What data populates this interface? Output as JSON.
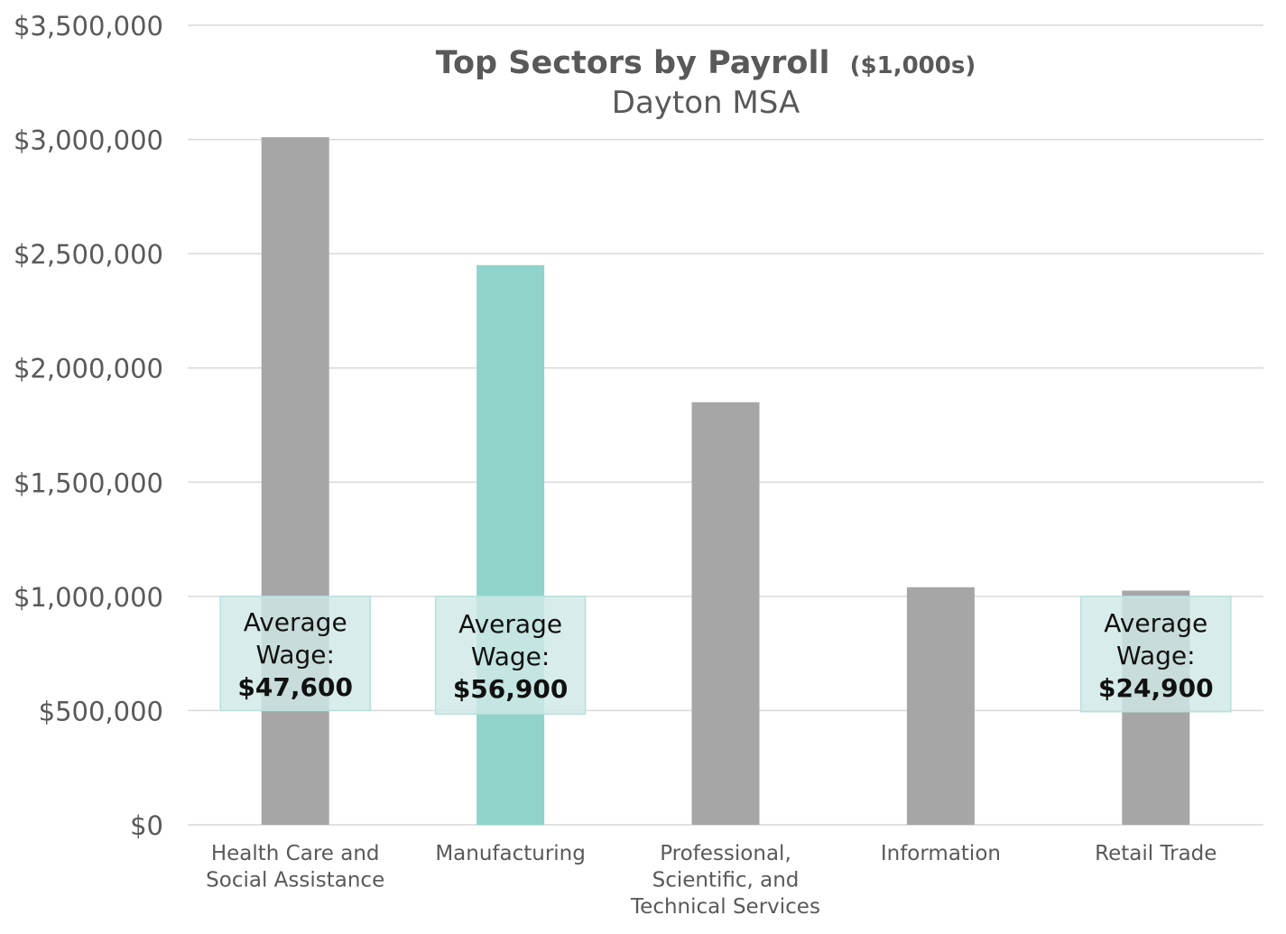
{
  "chart_data": {
    "type": "bar",
    "title": "Top Sectors by Payroll",
    "title_unit": "($1,000s)",
    "subtitle": "Dayton MSA",
    "xlabel": "",
    "ylabel": "",
    "ylim": [
      0,
      3500000
    ],
    "y_ticks": [
      0,
      500000,
      1000000,
      1500000,
      2000000,
      2500000,
      3000000,
      3500000
    ],
    "y_tick_labels": [
      "$0",
      "$500,000",
      "$1,000,000",
      "$1,500,000",
      "$2,000,000",
      "$2,500,000",
      "$3,000,000",
      "$3,500,000"
    ],
    "grid": true,
    "legend": "none",
    "categories": [
      [
        "Health Care and",
        "Social Assistance"
      ],
      [
        "Manufacturing"
      ],
      [
        "Professional,",
        "Scientific, and",
        "Technical Services"
      ],
      [
        "Information"
      ],
      [
        "Retail Trade"
      ]
    ],
    "values": [
      3010000,
      2450000,
      1850000,
      1040000,
      1025000
    ],
    "highlight_index": 1,
    "colors": {
      "bar": "#a6a6a6",
      "highlight": "#8fd3ca",
      "grid": "#d9d9d9",
      "axis_text": "#595959",
      "title_text": "#595959",
      "wage_box": "#cfe9e7",
      "wage_box_border": "#b6e0dc"
    },
    "annotations": [
      {
        "category_index": 0,
        "label_lines": [
          "Average",
          "Wage:"
        ],
        "value": "$47,600",
        "range": [
          500000,
          1000000
        ]
      },
      {
        "category_index": 1,
        "label_lines": [
          "Average",
          "Wage:"
        ],
        "value": "$56,900",
        "range": [
          485000,
          1000000
        ]
      },
      {
        "category_index": 4,
        "label_lines": [
          "Average",
          "Wage:"
        ],
        "value": "$24,900",
        "range": [
          495000,
          1000000
        ]
      }
    ]
  }
}
